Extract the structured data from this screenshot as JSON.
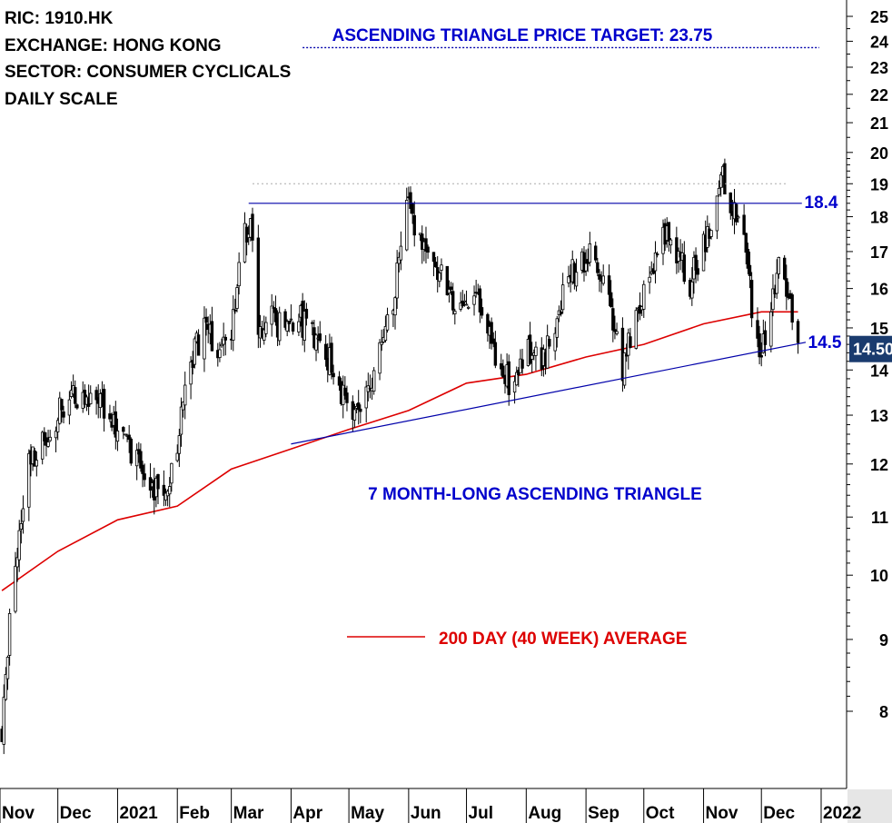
{
  "header": {
    "lines": [
      "RIC: 1910.HK",
      "EXCHANGE: HONG KONG",
      "SECTOR: CONSUMER CYCLICALS",
      "DAILY SCALE"
    ]
  },
  "chart_data": {
    "type": "candlestick",
    "scale": "log",
    "ylim": [
      7.4,
      26
    ],
    "y_ticks": [
      8,
      9,
      10,
      11,
      12,
      13,
      14,
      15,
      16,
      17,
      18,
      19,
      20,
      21,
      22,
      23,
      24,
      25
    ],
    "x_ticks": [
      "Nov",
      "Dec",
      "2021",
      "Feb",
      "Mar",
      "Apr",
      "May",
      "Jun",
      "Jul",
      "Aug",
      "Sep",
      "Oct",
      "Nov",
      "Dec",
      "2022"
    ],
    "price_path": [
      [
        "2020-11-02",
        7.8
      ],
      [
        "2020-11-05",
        8.9
      ],
      [
        "2020-11-09",
        10.2
      ],
      [
        "2020-11-12",
        11.0
      ],
      [
        "2020-11-16",
        12.0
      ],
      [
        "2020-11-23",
        12.4
      ],
      [
        "2020-11-30",
        12.9
      ],
      [
        "2020-12-07",
        13.5
      ],
      [
        "2020-12-14",
        13.3
      ],
      [
        "2020-12-21",
        13.6
      ],
      [
        "2020-12-28",
        13.0
      ],
      [
        "2021-01-04",
        12.6
      ],
      [
        "2021-01-11",
        12.0
      ],
      [
        "2021-01-18",
        11.6
      ],
      [
        "2021-01-25",
        11.3
      ],
      [
        "2021-02-01",
        12.5
      ],
      [
        "2021-02-08",
        14.2
      ],
      [
        "2021-02-15",
        15.0
      ],
      [
        "2021-02-22",
        14.4
      ],
      [
        "2021-03-01",
        15.0
      ],
      [
        "2021-03-08",
        17.5
      ],
      [
        "2021-03-11",
        17.8
      ],
      [
        "2021-03-15",
        14.6
      ],
      [
        "2021-03-22",
        15.3
      ],
      [
        "2021-03-29",
        14.9
      ],
      [
        "2021-04-06",
        15.2
      ],
      [
        "2021-04-12",
        14.8
      ],
      [
        "2021-04-19",
        14.5
      ],
      [
        "2021-04-26",
        13.5
      ],
      [
        "2021-05-03",
        12.9
      ],
      [
        "2021-05-10",
        13.4
      ],
      [
        "2021-05-17",
        14.5
      ],
      [
        "2021-05-24",
        15.6
      ],
      [
        "2021-05-31",
        18.4
      ],
      [
        "2021-06-07",
        17.2
      ],
      [
        "2021-06-14",
        16.8
      ],
      [
        "2021-06-21",
        16.0
      ],
      [
        "2021-06-28",
        15.6
      ],
      [
        "2021-07-05",
        15.8
      ],
      [
        "2021-07-12",
        15.0
      ],
      [
        "2021-07-19",
        14.0
      ],
      [
        "2021-07-26",
        13.6
      ],
      [
        "2021-08-02",
        14.5
      ],
      [
        "2021-08-09",
        14.2
      ],
      [
        "2021-08-16",
        15.0
      ],
      [
        "2021-08-23",
        16.3
      ],
      [
        "2021-08-30",
        16.7
      ],
      [
        "2021-09-06",
        17.0
      ],
      [
        "2021-09-13",
        15.5
      ],
      [
        "2021-09-20",
        14.1
      ],
      [
        "2021-09-27",
        15.3
      ],
      [
        "2021-10-04",
        16.5
      ],
      [
        "2021-10-11",
        17.6
      ],
      [
        "2021-10-18",
        17.0
      ],
      [
        "2021-10-25",
        16.2
      ],
      [
        "2021-11-01",
        17.2
      ],
      [
        "2021-11-08",
        18.3
      ],
      [
        "2021-11-11",
        19.3
      ],
      [
        "2021-11-15",
        18.5
      ],
      [
        "2021-11-22",
        17.5
      ],
      [
        "2021-11-26",
        15.5
      ],
      [
        "2021-11-30",
        14.3
      ],
      [
        "2021-12-03",
        14.6
      ],
      [
        "2021-12-07",
        15.8
      ],
      [
        "2021-12-10",
        16.6
      ],
      [
        "2021-12-14",
        15.7
      ],
      [
        "2021-12-17",
        15.3
      ],
      [
        "2021-12-20",
        14.5
      ]
    ],
    "ma200_path": [
      [
        "2020-11-02",
        9.75
      ],
      [
        "2020-12-01",
        10.4
      ],
      [
        "2021-01-01",
        10.95
      ],
      [
        "2021-02-01",
        11.2
      ],
      [
        "2021-03-01",
        11.9
      ],
      [
        "2021-04-01",
        12.3
      ],
      [
        "2021-05-01",
        12.7
      ],
      [
        "2021-06-01",
        13.1
      ],
      [
        "2021-07-01",
        13.7
      ],
      [
        "2021-08-01",
        13.9
      ],
      [
        "2021-09-01",
        14.3
      ],
      [
        "2021-10-01",
        14.6
      ],
      [
        "2021-11-01",
        15.1
      ],
      [
        "2021-12-01",
        15.4
      ],
      [
        "2021-12-20",
        15.4
      ]
    ],
    "resistance": {
      "value": 18.4,
      "from": "2021-03-10",
      "to": "2021-12-22"
    },
    "support": {
      "from": [
        "2021-04-01",
        12.4
      ],
      "to": [
        "2021-12-24",
        14.65
      ]
    },
    "target": {
      "value": 23.75
    },
    "labels": {
      "target": "ASCENDING TRIANGLE PRICE TARGET: 23.75",
      "resistance": "18.4",
      "support": "14.5",
      "pattern": "7 MONTH-LONG ASCENDING TRIANGLE",
      "ma_legend": "200 DAY (40 WEEK) AVERAGE",
      "last_price": "14.50"
    },
    "colors": {
      "price": "#000000",
      "ma": "#dd0000",
      "trend": "#0000aa",
      "label": "#0000cc",
      "ma_label": "#dd0000",
      "last_bg": "#1a3b6e"
    }
  }
}
